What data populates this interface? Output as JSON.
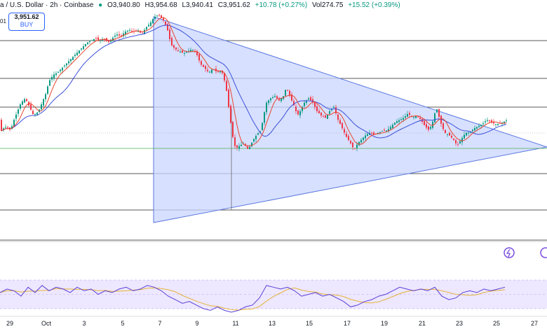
{
  "header": {
    "pair": "a / U.S. Dollar · 2h · Coinbase",
    "open": "O3,940.80",
    "high": "H3,954.68",
    "low": "L3,940.41",
    "close": "C3,951.62",
    "change": "+10.78 (+0.27%)",
    "volume": "Vol274.75",
    "vol_change": "+15.52 (+0.39%)",
    "price_left": "3,951.62"
  },
  "buy_box": {
    "price": "3,951.62",
    "label": "BUY",
    "left_tag": "01"
  },
  "colors": {
    "up": "#089981",
    "down": "#f23645",
    "triangle_fill": "#c9d6ff",
    "triangle_stroke": "#5b78e0",
    "ma_fast": "#e8452f",
    "ma_slow": "#3b4fd9",
    "rsi_line": "#5b3fd6",
    "rsi_ma": "#e4b33a",
    "rsi_band": "#ede7ff"
  },
  "chart_data": {
    "type": "candlestick",
    "x_labels": [
      "29",
      "Oct",
      "3",
      "5",
      "7",
      "9",
      "11",
      "13",
      "15",
      "17",
      "19",
      "21",
      "23",
      "25",
      "27"
    ],
    "price_path": [
      [
        0,
        0.58
      ],
      [
        5,
        0.56
      ],
      [
        10,
        0.55
      ],
      [
        15,
        0.57
      ],
      [
        20,
        0.52
      ],
      [
        25,
        0.48
      ],
      [
        30,
        0.44
      ],
      [
        36,
        0.42
      ],
      [
        42,
        0.46
      ],
      [
        48,
        0.5
      ],
      [
        55,
        0.48
      ],
      [
        60,
        0.44
      ],
      [
        65,
        0.4
      ],
      [
        70,
        0.34
      ],
      [
        76,
        0.31
      ],
      [
        82,
        0.3
      ],
      [
        88,
        0.28
      ],
      [
        94,
        0.26
      ],
      [
        100,
        0.24
      ],
      [
        106,
        0.22
      ],
      [
        112,
        0.2
      ],
      [
        118,
        0.18
      ],
      [
        124,
        0.16
      ],
      [
        130,
        0.15
      ],
      [
        136,
        0.14
      ],
      [
        142,
        0.15
      ],
      [
        148,
        0.14
      ],
      [
        154,
        0.16
      ],
      [
        160,
        0.14
      ],
      [
        166,
        0.12
      ],
      [
        172,
        0.13
      ],
      [
        178,
        0.11
      ],
      [
        184,
        0.1
      ],
      [
        190,
        0.11
      ],
      [
        196,
        0.1
      ],
      [
        202,
        0.12
      ],
      [
        208,
        0.09
      ],
      [
        214,
        0.07
      ],
      [
        220,
        0.04
      ],
      [
        226,
        0.03
      ],
      [
        232,
        0.05
      ],
      [
        238,
        0.09
      ],
      [
        244,
        0.17
      ],
      [
        250,
        0.19
      ],
      [
        256,
        0.2
      ],
      [
        262,
        0.21
      ],
      [
        268,
        0.2
      ],
      [
        274,
        0.19
      ],
      [
        280,
        0.21
      ],
      [
        286,
        0.26
      ],
      [
        292,
        0.28
      ],
      [
        298,
        0.3
      ],
      [
        304,
        0.28
      ],
      [
        310,
        0.3
      ],
      [
        316,
        0.29
      ],
      [
        322,
        0.36
      ],
      [
        326,
        0.46
      ],
      [
        330,
        0.56
      ],
      [
        334,
        0.64
      ],
      [
        338,
        0.65
      ],
      [
        342,
        0.64
      ],
      [
        348,
        0.63
      ],
      [
        354,
        0.66
      ],
      [
        360,
        0.62
      ],
      [
        366,
        0.59
      ],
      [
        372,
        0.57
      ],
      [
        376,
        0.5
      ],
      [
        380,
        0.44
      ],
      [
        386,
        0.42
      ],
      [
        392,
        0.41
      ],
      [
        398,
        0.43
      ],
      [
        404,
        0.41
      ],
      [
        408,
        0.37
      ],
      [
        412,
        0.4
      ],
      [
        416,
        0.43
      ],
      [
        420,
        0.46
      ],
      [
        424,
        0.5
      ],
      [
        428,
        0.48
      ],
      [
        434,
        0.44
      ],
      [
        440,
        0.42
      ],
      [
        446,
        0.44
      ],
      [
        452,
        0.48
      ],
      [
        458,
        0.5
      ],
      [
        464,
        0.51
      ],
      [
        470,
        0.48
      ],
      [
        476,
        0.46
      ],
      [
        482,
        0.52
      ],
      [
        488,
        0.56
      ],
      [
        494,
        0.6
      ],
      [
        500,
        0.63
      ],
      [
        505,
        0.66
      ],
      [
        510,
        0.63
      ],
      [
        516,
        0.61
      ],
      [
        522,
        0.59
      ],
      [
        528,
        0.58
      ],
      [
        534,
        0.59
      ],
      [
        540,
        0.58
      ],
      [
        546,
        0.57
      ],
      [
        552,
        0.57
      ],
      [
        558,
        0.55
      ],
      [
        564,
        0.53
      ],
      [
        570,
        0.52
      ],
      [
        576,
        0.51
      ],
      [
        582,
        0.49
      ],
      [
        588,
        0.51
      ],
      [
        594,
        0.5
      ],
      [
        600,
        0.52
      ],
      [
        606,
        0.55
      ],
      [
        612,
        0.57
      ],
      [
        618,
        0.52
      ],
      [
        622,
        0.46
      ],
      [
        628,
        0.53
      ],
      [
        634,
        0.58
      ],
      [
        640,
        0.59
      ],
      [
        646,
        0.61
      ],
      [
        652,
        0.64
      ],
      [
        658,
        0.61
      ],
      [
        664,
        0.58
      ],
      [
        670,
        0.58
      ],
      [
        676,
        0.56
      ],
      [
        682,
        0.55
      ],
      [
        688,
        0.54
      ],
      [
        694,
        0.52
      ],
      [
        700,
        0.53
      ],
      [
        706,
        0.54
      ],
      [
        712,
        0.54
      ],
      [
        718,
        0.53
      ],
      [
        724,
        0.52
      ]
    ],
    "rsi_path": [
      [
        0,
        0.45
      ],
      [
        10,
        0.35
      ],
      [
        20,
        0.4
      ],
      [
        30,
        0.55
      ],
      [
        40,
        0.3
      ],
      [
        50,
        0.45
      ],
      [
        60,
        0.25
      ],
      [
        70,
        0.4
      ],
      [
        80,
        0.3
      ],
      [
        90,
        0.35
      ],
      [
        100,
        0.45
      ],
      [
        110,
        0.3
      ],
      [
        120,
        0.4
      ],
      [
        130,
        0.35
      ],
      [
        140,
        0.5
      ],
      [
        150,
        0.4
      ],
      [
        160,
        0.45
      ],
      [
        170,
        0.35
      ],
      [
        180,
        0.3
      ],
      [
        190,
        0.4
      ],
      [
        200,
        0.35
      ],
      [
        210,
        0.25
      ],
      [
        220,
        0.3
      ],
      [
        230,
        0.4
      ],
      [
        240,
        0.55
      ],
      [
        250,
        0.65
      ],
      [
        260,
        0.75
      ],
      [
        270,
        0.7
      ],
      [
        280,
        0.8
      ],
      [
        290,
        0.9
      ],
      [
        300,
        0.95
      ],
      [
        310,
        0.85
      ],
      [
        320,
        0.95
      ],
      [
        330,
        1.0
      ],
      [
        340,
        0.95
      ],
      [
        350,
        0.85
      ],
      [
        360,
        0.8
      ],
      [
        370,
        0.6
      ],
      [
        380,
        0.25
      ],
      [
        390,
        0.3
      ],
      [
        400,
        0.35
      ],
      [
        410,
        0.3
      ],
      [
        420,
        0.4
      ],
      [
        430,
        0.55
      ],
      [
        440,
        0.5
      ],
      [
        450,
        0.45
      ],
      [
        460,
        0.55
      ],
      [
        470,
        0.5
      ],
      [
        480,
        0.6
      ],
      [
        490,
        0.7
      ],
      [
        500,
        0.85
      ],
      [
        510,
        0.8
      ],
      [
        520,
        0.7
      ],
      [
        530,
        0.65
      ],
      [
        540,
        0.55
      ],
      [
        550,
        0.5
      ],
      [
        560,
        0.4
      ],
      [
        570,
        0.3
      ],
      [
        580,
        0.35
      ],
      [
        590,
        0.4
      ],
      [
        600,
        0.35
      ],
      [
        610,
        0.4
      ],
      [
        620,
        0.3
      ],
      [
        630,
        0.55
      ],
      [
        640,
        0.65
      ],
      [
        650,
        0.6
      ],
      [
        660,
        0.45
      ],
      [
        670,
        0.4
      ],
      [
        680,
        0.45
      ],
      [
        690,
        0.35
      ],
      [
        700,
        0.4
      ],
      [
        710,
        0.35
      ],
      [
        720,
        0.3
      ]
    ]
  }
}
